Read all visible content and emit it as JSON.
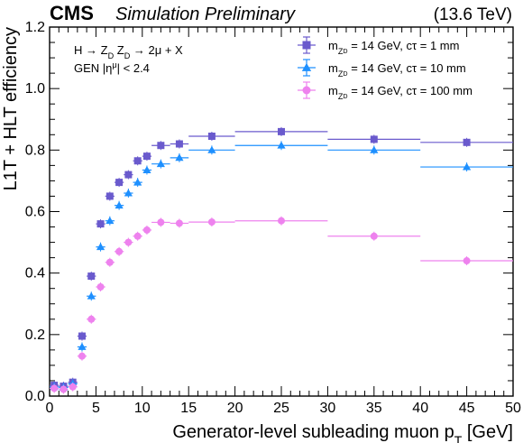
{
  "header": {
    "experiment": "CMS",
    "status": "Simulation Preliminary",
    "energy": "(13.6 TeV)"
  },
  "annotations": {
    "process": "H → Z_D Z_D → 2μ + X",
    "cut": "GEN |η^μ| < 2.4"
  },
  "chart_data": {
    "type": "scatter",
    "xlabel": "Generator-level subleading muon p_T [GeV]",
    "ylabel": "L1T + HLT efficiency",
    "xlim": [
      0,
      50
    ],
    "ylim": [
      0,
      1.2
    ],
    "xticks": [
      "0",
      "5",
      "10",
      "15",
      "20",
      "25",
      "30",
      "35",
      "40",
      "45",
      "50"
    ],
    "yticks": [
      "0.0",
      "0.2",
      "0.4",
      "0.6",
      "0.8",
      "1.0",
      "1.2"
    ],
    "grid": false,
    "legend_position": "top-right",
    "series": [
      {
        "name": "m_{Z_D} = 14 GeV, cτ = 1 mm",
        "color": "#6a5acd",
        "marker": "square",
        "points": [
          {
            "x": 0.5,
            "xerr": 0.5,
            "y": 0.035
          },
          {
            "x": 1.5,
            "xerr": 0.5,
            "y": 0.032
          },
          {
            "x": 2.5,
            "xerr": 0.5,
            "y": 0.045
          },
          {
            "x": 3.5,
            "xerr": 0.5,
            "y": 0.195
          },
          {
            "x": 4.5,
            "xerr": 0.5,
            "y": 0.39
          },
          {
            "x": 5.5,
            "xerr": 0.5,
            "y": 0.56
          },
          {
            "x": 6.5,
            "xerr": 0.5,
            "y": 0.65
          },
          {
            "x": 7.5,
            "xerr": 0.5,
            "y": 0.695
          },
          {
            "x": 8.5,
            "xerr": 0.5,
            "y": 0.72
          },
          {
            "x": 9.5,
            "xerr": 0.5,
            "y": 0.765
          },
          {
            "x": 10.5,
            "xerr": 0.5,
            "y": 0.78
          },
          {
            "x": 12,
            "xerr": 1,
            "y": 0.815
          },
          {
            "x": 14,
            "xerr": 1,
            "y": 0.82
          },
          {
            "x": 17.5,
            "xerr": 2.5,
            "y": 0.845
          },
          {
            "x": 25,
            "xerr": 5,
            "y": 0.86
          },
          {
            "x": 35,
            "xerr": 5,
            "y": 0.835
          },
          {
            "x": 45,
            "xerr": 5,
            "y": 0.825
          }
        ]
      },
      {
        "name": "m_{Z_D} = 14 GeV, cτ = 10 mm",
        "color": "#1e90ff",
        "marker": "triangle",
        "points": [
          {
            "x": 0.5,
            "xerr": 0.5,
            "y": 0.03
          },
          {
            "x": 1.5,
            "xerr": 0.5,
            "y": 0.028
          },
          {
            "x": 2.5,
            "xerr": 0.5,
            "y": 0.04
          },
          {
            "x": 3.5,
            "xerr": 0.5,
            "y": 0.16
          },
          {
            "x": 4.5,
            "xerr": 0.5,
            "y": 0.325
          },
          {
            "x": 5.5,
            "xerr": 0.5,
            "y": 0.485
          },
          {
            "x": 6.5,
            "xerr": 0.5,
            "y": 0.57
          },
          {
            "x": 7.5,
            "xerr": 0.5,
            "y": 0.62
          },
          {
            "x": 8.5,
            "xerr": 0.5,
            "y": 0.66
          },
          {
            "x": 9.5,
            "xerr": 0.5,
            "y": 0.695
          },
          {
            "x": 10.5,
            "xerr": 0.5,
            "y": 0.735
          },
          {
            "x": 12,
            "xerr": 1,
            "y": 0.755
          },
          {
            "x": 14,
            "xerr": 1,
            "y": 0.775
          },
          {
            "x": 17.5,
            "xerr": 2.5,
            "y": 0.8
          },
          {
            "x": 25,
            "xerr": 5,
            "y": 0.815
          },
          {
            "x": 35,
            "xerr": 5,
            "y": 0.8
          },
          {
            "x": 45,
            "xerr": 5,
            "y": 0.745
          }
        ]
      },
      {
        "name": "m_{Z_D} = 14 GeV, cτ = 100 mm",
        "color": "#ee82ee",
        "marker": "circle",
        "points": [
          {
            "x": 0.5,
            "xerr": 0.5,
            "y": 0.025
          },
          {
            "x": 1.5,
            "xerr": 0.5,
            "y": 0.022
          },
          {
            "x": 2.5,
            "xerr": 0.5,
            "y": 0.03
          },
          {
            "x": 3.5,
            "xerr": 0.5,
            "y": 0.13
          },
          {
            "x": 4.5,
            "xerr": 0.5,
            "y": 0.25
          },
          {
            "x": 5.5,
            "xerr": 0.5,
            "y": 0.355
          },
          {
            "x": 6.5,
            "xerr": 0.5,
            "y": 0.435
          },
          {
            "x": 7.5,
            "xerr": 0.5,
            "y": 0.47
          },
          {
            "x": 8.5,
            "xerr": 0.5,
            "y": 0.5
          },
          {
            "x": 9.5,
            "xerr": 0.5,
            "y": 0.52
          },
          {
            "x": 10.5,
            "xerr": 0.5,
            "y": 0.54
          },
          {
            "x": 12,
            "xerr": 1,
            "y": 0.565
          },
          {
            "x": 14,
            "xerr": 1,
            "y": 0.562
          },
          {
            "x": 17.5,
            "xerr": 2.5,
            "y": 0.566
          },
          {
            "x": 25,
            "xerr": 5,
            "y": 0.57
          },
          {
            "x": 35,
            "xerr": 5,
            "y": 0.52
          },
          {
            "x": 45,
            "xerr": 5,
            "y": 0.44
          }
        ]
      }
    ]
  }
}
